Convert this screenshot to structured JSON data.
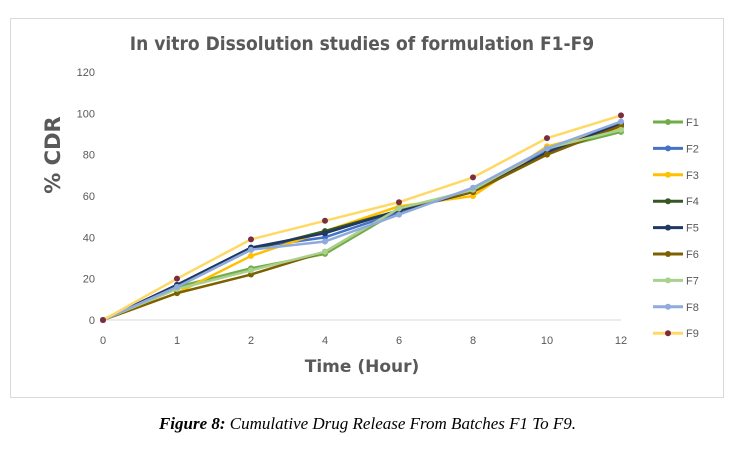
{
  "chart_data": {
    "type": "line",
    "title": "In vitro Dissolution studies of formulation F1-F9",
    "xlabel": "Time (Hour)",
    "ylabel": "% CDR",
    "categories": [
      "0",
      "1",
      "2",
      "4",
      "6",
      "8",
      "10",
      "12"
    ],
    "ylim": [
      0,
      120
    ],
    "yticks": [
      "0",
      "20",
      "40",
      "60",
      "80",
      "100",
      "120"
    ],
    "grid": false,
    "legend": "right",
    "series": [
      {
        "name": "F1",
        "color": "#70ad47",
        "marker": "#70ad47",
        "values": [
          0,
          16,
          25,
          32,
          53,
          62,
          82,
          91
        ]
      },
      {
        "name": "F2",
        "color": "#4472c4",
        "marker": "#4472c4",
        "values": [
          0,
          17,
          35,
          40,
          52,
          63,
          82,
          95
        ]
      },
      {
        "name": "F3",
        "color": "#ffc000",
        "marker": "#ffc000",
        "values": [
          0,
          13,
          31,
          43,
          55,
          60,
          84,
          93
        ]
      },
      {
        "name": "F4",
        "color": "#375623",
        "marker": "#375623",
        "values": [
          0,
          16,
          34,
          43,
          53,
          62,
          81,
          94
        ]
      },
      {
        "name": "F5",
        "color": "#203864",
        "marker": "#203864",
        "values": [
          0,
          17,
          35,
          42,
          53,
          62,
          81,
          95
        ]
      },
      {
        "name": "F6",
        "color": "#7f6000",
        "marker": "#7f6000",
        "values": [
          0,
          13,
          22,
          33,
          54,
          62,
          80,
          94
        ]
      },
      {
        "name": "F7",
        "color": "#a9d18e",
        "marker": "#a9d18e",
        "values": [
          0,
          15,
          24,
          33,
          54,
          63,
          83,
          92
        ]
      },
      {
        "name": "F8",
        "color": "#8faadc",
        "marker": "#8faadc",
        "values": [
          0,
          16,
          34,
          38,
          51,
          64,
          83,
          96
        ]
      },
      {
        "name": "F9",
        "color": "#ffd966",
        "marker": "#7b2c3f",
        "values": [
          0,
          20,
          39,
          48,
          57,
          69,
          88,
          99
        ]
      }
    ]
  },
  "caption": {
    "label": "Figure 8:",
    "text": " Cumulative Drug Release From Batches F1 To F9."
  }
}
